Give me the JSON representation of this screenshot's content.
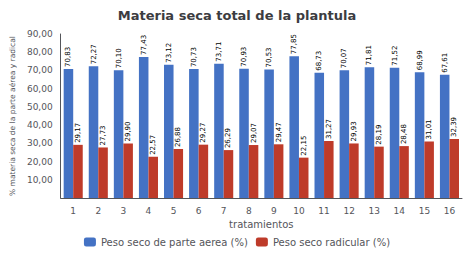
{
  "chart_data": {
    "type": "bar",
    "title": "Materia seca total de la plantula",
    "xlabel": "tratamientos",
    "ylabel": "% materia seca de la parte aérea y radical",
    "categories": [
      1,
      2,
      3,
      4,
      5,
      6,
      7,
      8,
      9,
      10,
      11,
      12,
      13,
      14,
      15,
      16
    ],
    "series": [
      {
        "name": "Peso seco de parte aerea (%)",
        "color": "#4472C4",
        "values": [
          70.83,
          72.27,
          70.1,
          77.43,
          73.12,
          70.73,
          73.71,
          70.93,
          70.53,
          77.85,
          68.73,
          70.07,
          71.81,
          71.52,
          68.99,
          67.61
        ],
        "value_labels": [
          "70,83",
          "72,27",
          "70,10",
          "77,43",
          "73,12",
          "70,73",
          "73,71",
          "70,93",
          "70,53",
          "77,85",
          "68,73",
          "70,07",
          "71,81",
          "71,52",
          "68,99",
          "67,61"
        ]
      },
      {
        "name": "Peso seco radicular (%)",
        "color": "#BE3B2A",
        "values": [
          29.17,
          27.73,
          29.9,
          22.57,
          26.88,
          29.27,
          26.29,
          29.07,
          29.47,
          22.15,
          31.27,
          29.93,
          28.19,
          28.48,
          31.01,
          32.39
        ],
        "value_labels": [
          "29,17",
          "27,73",
          "29,90",
          "22,57",
          "26,88",
          "29,27",
          "26,29",
          "29,07",
          "29,47",
          "22,15",
          "31,27",
          "29,93",
          "28,19",
          "28,48",
          "31,01",
          "32,39"
        ]
      }
    ],
    "ylim": [
      0,
      90
    ],
    "yticks": [
      {
        "value": 10,
        "label": "10,00"
      },
      {
        "value": 20,
        "label": "20,00"
      },
      {
        "value": 30,
        "label": "30,00"
      },
      {
        "value": 40,
        "label": "40,00"
      },
      {
        "value": 50,
        "label": "50,00"
      },
      {
        "value": 60,
        "label": "60,00"
      },
      {
        "value": 70,
        "label": "70,00"
      },
      {
        "value": 80,
        "label": "80,00"
      },
      {
        "value": 90,
        "label": "90,00"
      }
    ],
    "grid": false,
    "legend": "bottom",
    "data_labels": true
  }
}
